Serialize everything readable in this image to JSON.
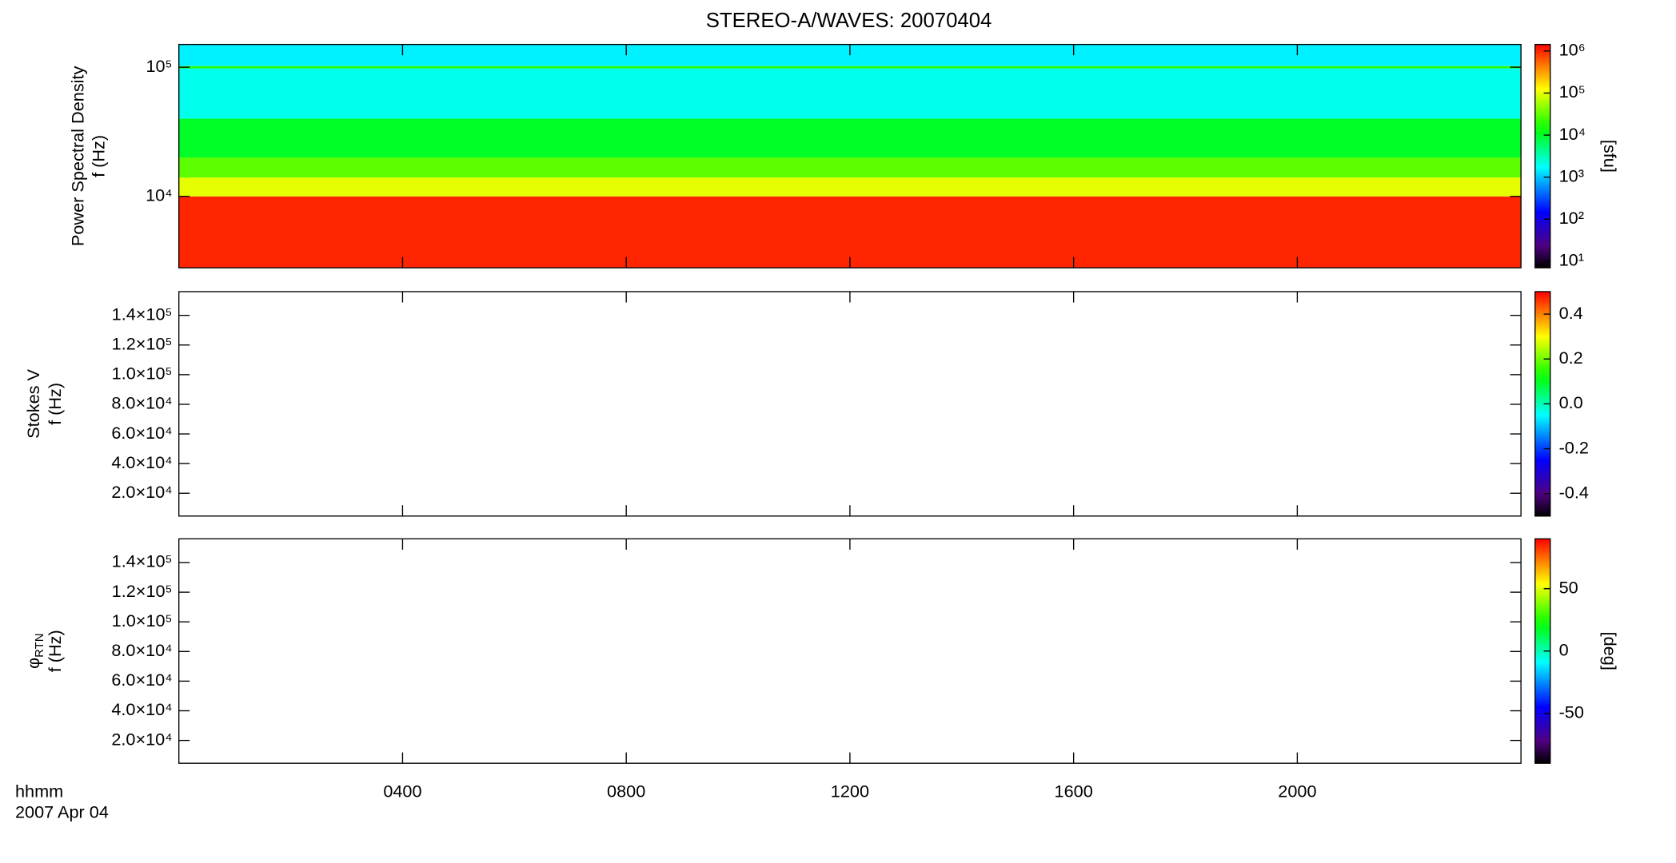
{
  "figure": {
    "title": "STEREO-A/WAVES: 20070404",
    "x_label": "hhmm",
    "date_label": "2007 Apr 04",
    "xlim": [
      0,
      24
    ],
    "xticks": [
      {
        "value": 4,
        "label": "0400"
      },
      {
        "value": 8,
        "label": "0800"
      },
      {
        "value": 12,
        "label": "1200"
      },
      {
        "value": 16,
        "label": "1600"
      },
      {
        "value": 20,
        "label": "2000"
      }
    ]
  },
  "chart_data": [
    {
      "type": "spectrogram",
      "ylabel": [
        "Power Spectral Density",
        "f (Hz)"
      ],
      "yscale": "log",
      "ylim": [
        2800,
        150000
      ],
      "yticks": [
        {
          "value": 10000,
          "label": "10⁴"
        },
        {
          "value": 100000,
          "label": "10⁵"
        }
      ],
      "colormap": "rainbow",
      "cscale": "log",
      "clim": [
        7,
        1430000
      ],
      "clabel": "[sfu]",
      "cticks": [
        {
          "value": 10,
          "label": "10¹"
        },
        {
          "value": 100,
          "label": "10²"
        },
        {
          "value": 1000,
          "label": "10³"
        },
        {
          "value": 10000,
          "label": "10⁴"
        },
        {
          "value": 100000,
          "label": "10⁵"
        },
        {
          "value": 1000000,
          "label": "10⁶"
        }
      ],
      "freq_edges": [
        2800,
        10000,
        14000,
        20000,
        40000,
        98000,
        102000,
        150000
      ],
      "values": [
        1000000,
        100000,
        30000,
        10000,
        2000,
        20000,
        1500
      ]
    },
    {
      "type": "spectrogram",
      "ylabel": [
        "Stokes V",
        "f (Hz)"
      ],
      "yscale": "linear",
      "ylim": [
        4600,
        156000
      ],
      "yticks": [
        {
          "value": 20000,
          "label": "2.0×10⁴"
        },
        {
          "value": 40000,
          "label": "4.0×10⁴"
        },
        {
          "value": 60000,
          "label": "6.0×10⁴"
        },
        {
          "value": 80000,
          "label": "8.0×10⁴"
        },
        {
          "value": 100000,
          "label": "1.0×10⁵"
        },
        {
          "value": 120000,
          "label": "1.2×10⁵"
        },
        {
          "value": 140000,
          "label": "1.4×10⁵"
        }
      ],
      "colormap": "rainbow",
      "cscale": "linear",
      "clim": [
        -0.5,
        0.5
      ],
      "cticks": [
        -0.4,
        -0.2,
        {
          "value": 0,
          "label": "0.0"
        },
        0.2,
        0.4
      ]
    },
    {
      "type": "spectrogram",
      "ylabel": [
        "φ",
        "f (Hz)"
      ],
      "ylabel_sub": "RTN",
      "yscale": "linear",
      "ylim": [
        4600,
        156000
      ],
      "yticks": [
        {
          "value": 20000,
          "label": "2.0×10⁴"
        },
        {
          "value": 40000,
          "label": "4.0×10⁴"
        },
        {
          "value": 60000,
          "label": "6.0×10⁴"
        },
        {
          "value": 80000,
          "label": "8.0×10⁴"
        },
        {
          "value": 100000,
          "label": "1.0×10⁵"
        },
        {
          "value": 120000,
          "label": "1.2×10⁵"
        },
        {
          "value": 140000,
          "label": "1.4×10⁵"
        }
      ],
      "colormap": "rainbow",
      "cscale": "linear",
      "clim": [
        -90,
        90
      ],
      "clabel": "[deg]",
      "cticks": [
        -50,
        0,
        50
      ]
    }
  ]
}
